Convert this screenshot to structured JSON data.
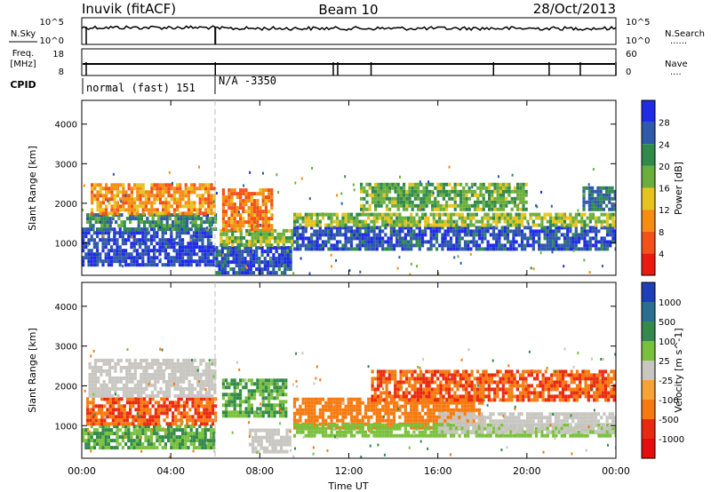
{
  "header": {
    "station": "Inuvik (fitACF)",
    "beam": "Beam 10",
    "date": "28/Oct/2013"
  },
  "top_panels": {
    "nsky_label": "N.Sky",
    "nsearch_label": "N.Search",
    "nsearch_dots": "......",
    "sky_ticks": [
      "10^5",
      "10^0"
    ],
    "search_ticks": [
      "10^5",
      "10^0"
    ],
    "freq_label_line1": "Freq.",
    "freq_label_line2": "[MHz]",
    "freq_ticks": [
      "18",
      "8"
    ],
    "nave_label": "Nave",
    "nave_dots": "....",
    "nave_ticks": [
      "60",
      "0"
    ],
    "cpid_label": "CPID",
    "cpid_segments": [
      {
        "text": "normal (fast) 151",
        "start": "00:00",
        "end": "06:00"
      },
      {
        "text": "N/A -3350",
        "start": "06:00",
        "end": "24:00"
      }
    ]
  },
  "chart_data": [
    {
      "type": "heatmap",
      "name": "Power",
      "ylabel": "Slant Range [km]",
      "xlabel": "",
      "x_ticks": [
        "00:00",
        "04:00",
        "08:00",
        "12:00",
        "16:00",
        "20:00",
        "00:00"
      ],
      "xlim_hours": [
        0,
        24
      ],
      "y_ticks": [
        1000,
        2000,
        3000,
        4000
      ],
      "ylim": [
        180,
        4600
      ],
      "colorbar": {
        "label": "Power [dB]",
        "ticks": [
          4,
          8,
          12,
          16,
          20,
          24,
          28
        ],
        "range": [
          0,
          32
        ],
        "colors": [
          "#1f2be6",
          "#2f59a9",
          "#2f8a4c",
          "#6cae3c",
          "#e7c41d",
          "#f48d12",
          "#f4511a",
          "#ea1a10"
        ]
      },
      "bands": [
        {
          "t": [
            0.0,
            6.0
          ],
          "r": [
            400,
            1300
          ],
          "level": 28
        },
        {
          "t": [
            0.2,
            6.0
          ],
          "r": [
            1300,
            1700
          ],
          "level": 22
        },
        {
          "t": [
            0.4,
            6.0
          ],
          "r": [
            1700,
            2500
          ],
          "level": 10
        },
        {
          "t": [
            6.0,
            9.4
          ],
          "r": [
            200,
            900
          ],
          "level": 27
        },
        {
          "t": [
            6.2,
            9.5
          ],
          "r": [
            900,
            1300
          ],
          "level": 18
        },
        {
          "t": [
            6.3,
            8.6
          ],
          "r": [
            1300,
            2300
          ],
          "level": 9
        },
        {
          "t": [
            9.5,
            24.0
          ],
          "r": [
            800,
            1400
          ],
          "level": 27
        },
        {
          "t": [
            9.5,
            24.0
          ],
          "r": [
            1400,
            1700
          ],
          "level": 17
        },
        {
          "t": [
            12.5,
            20.0
          ],
          "r": [
            1800,
            2500
          ],
          "level": 19
        },
        {
          "t": [
            22.5,
            24.0
          ],
          "r": [
            1800,
            2400
          ],
          "level": 24
        }
      ]
    },
    {
      "type": "heatmap",
      "name": "Velocity",
      "ylabel": "Slant Range [km]",
      "xlabel": "Time UT",
      "x_ticks": [
        "00:00",
        "04:00",
        "08:00",
        "12:00",
        "16:00",
        "20:00",
        "00:00"
      ],
      "xlim_hours": [
        0,
        24
      ],
      "y_ticks": [
        1000,
        2000,
        3000,
        4000
      ],
      "ylim": [
        180,
        4600
      ],
      "colorbar": {
        "label": "Velocity [m s^-1]",
        "ticks": [
          1000,
          500,
          100,
          25,
          -25,
          -100,
          -500,
          -1000
        ],
        "colors": [
          "#1f3fb7",
          "#2a6f8f",
          "#338a4a",
          "#79c13c",
          "#c8c6c0",
          "#f7a238",
          "#f67a10",
          "#ea2a10",
          "#e40c0c"
        ]
      },
      "bands": [
        {
          "t": [
            0.0,
            6.0
          ],
          "r": [
            400,
            1000
          ],
          "level": 100
        },
        {
          "t": [
            0.2,
            6.0
          ],
          "r": [
            1000,
            1700
          ],
          "level": -500
        },
        {
          "t": [
            0.3,
            6.0
          ],
          "r": [
            1700,
            2600
          ],
          "level": 0
        },
        {
          "t": [
            6.3,
            9.2
          ],
          "r": [
            1200,
            2100
          ],
          "level": 100
        },
        {
          "t": [
            7.5,
            9.3
          ],
          "r": [
            300,
            900
          ],
          "level": 0
        },
        {
          "t": [
            9.5,
            18.0
          ],
          "r": [
            900,
            1700
          ],
          "level": -300
        },
        {
          "t": [
            9.5,
            24.0
          ],
          "r": [
            700,
            1000
          ],
          "level": 50
        },
        {
          "t": [
            16.0,
            24.0
          ],
          "r": [
            800,
            1300
          ],
          "level": 0
        },
        {
          "t": [
            13.0,
            24.0
          ],
          "r": [
            1600,
            2400
          ],
          "level": -500
        }
      ]
    }
  ]
}
